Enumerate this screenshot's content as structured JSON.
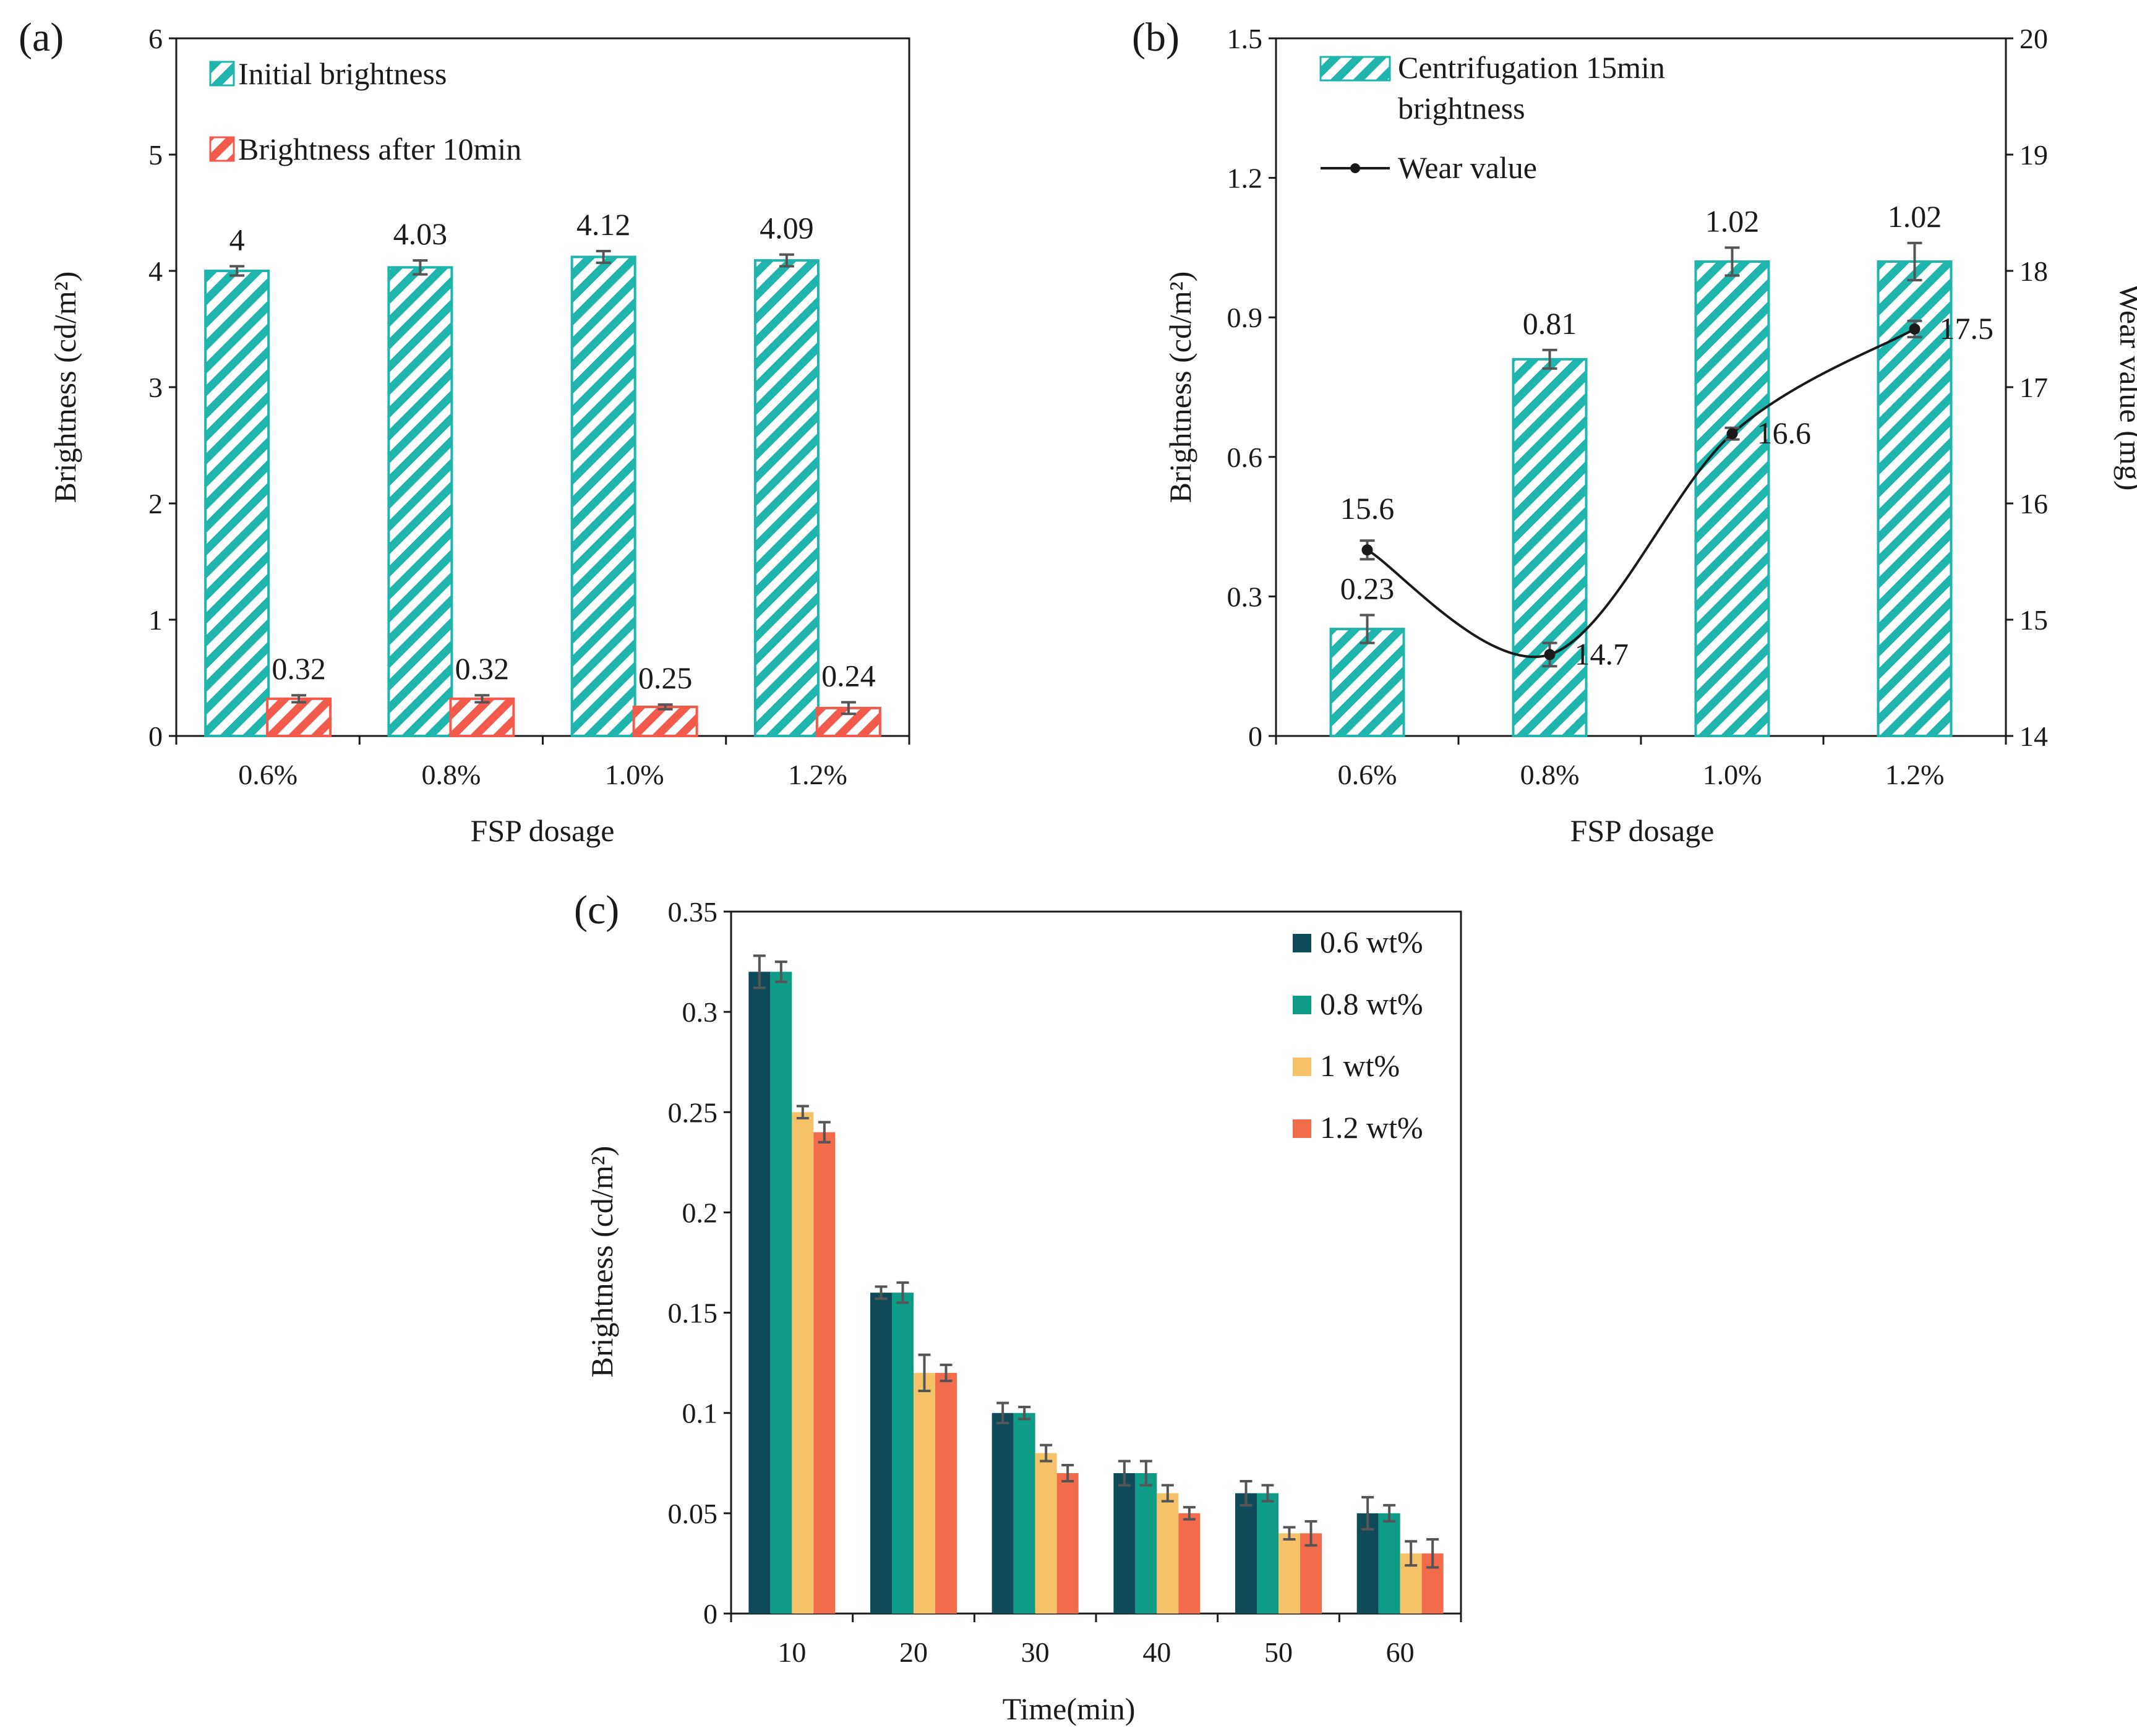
{
  "colors": {
    "teal": "#1fb5ac",
    "red": "#f25a4c",
    "black": "#1a1a1a",
    "error": "#555555",
    "dark_teal": "#0f4a58",
    "green": "#0e9c86",
    "yellow": "#f5c26a",
    "orange": "#f26b4a"
  },
  "chart_data": [
    {
      "id": "a",
      "panel_label": "(a)",
      "type": "bar",
      "xlabel": "FSP dosage",
      "ylabel": "Brightness (cd/m²)",
      "ylim": [
        0,
        6
      ],
      "yticks": [
        "0",
        "1",
        "2",
        "3",
        "4",
        "5",
        "6"
      ],
      "categories": [
        "0.6%",
        "0.8%",
        "1.0%",
        "1.2%"
      ],
      "legend_position": "top-left",
      "series": [
        {
          "name": "Initial brightness",
          "pattern": "hatch",
          "color_key": "teal",
          "values": [
            4,
            4.03,
            4.12,
            4.09
          ],
          "errors": [
            0.04,
            0.06,
            0.05,
            0.05
          ],
          "labels": [
            "4",
            "4.03",
            "4.12",
            "4.09"
          ]
        },
        {
          "name": "Brightness after 10min",
          "pattern": "hatch",
          "color_key": "red",
          "values": [
            0.32,
            0.32,
            0.25,
            0.24
          ],
          "errors": [
            0.03,
            0.03,
            0.02,
            0.05
          ],
          "labels": [
            "0.32",
            "0.32",
            "0.25",
            "0.24"
          ]
        }
      ]
    },
    {
      "id": "b",
      "panel_label": "(b)",
      "type": "bar+line",
      "xlabel": "FSP dosage",
      "ylabel": "Brightness (cd/m²)",
      "ylabel_right": "Wear value (mg)",
      "ylim": [
        0,
        1.5
      ],
      "yticks": [
        "0",
        "0.3",
        "0.6",
        "0.9",
        "1.2",
        "1.5"
      ],
      "ylim_right": [
        14,
        20
      ],
      "yticks_right": [
        "14",
        "15",
        "16",
        "17",
        "18",
        "19",
        "20"
      ],
      "categories": [
        "0.6%",
        "0.8%",
        "1.0%",
        "1.2%"
      ],
      "legend_position": "top-left",
      "bar_series": {
        "name_line1": "Centrifugation 15min",
        "name_line2": "brightness",
        "pattern": "hatch",
        "color_key": "teal",
        "values": [
          0.23,
          0.81,
          1.02,
          1.02
        ],
        "errors": [
          0.03,
          0.02,
          0.03,
          0.04
        ],
        "labels": [
          "0.23",
          "0.81",
          "1.02",
          "1.02"
        ]
      },
      "line_series": {
        "name": "Wear value",
        "color_key": "black",
        "values": [
          15.6,
          14.7,
          16.6,
          17.5
        ],
        "errors": [
          0.08,
          0.1,
          0.05,
          0.07
        ],
        "labels": [
          "15.6",
          "14.7",
          "16.6",
          "17.5"
        ]
      }
    },
    {
      "id": "c",
      "panel_label": "(c)",
      "type": "bar",
      "xlabel": "Time(min)",
      "ylabel": "Brightness (cd/m²)",
      "ylim": [
        0,
        0.35
      ],
      "yticks": [
        "0",
        "0.05",
        "0.1",
        "0.15",
        "0.2",
        "0.25",
        "0.3",
        "0.35"
      ],
      "categories": [
        "10",
        "20",
        "30",
        "40",
        "50",
        "60"
      ],
      "legend_position": "top-right",
      "series": [
        {
          "name": "0.6 wt%",
          "color_key": "dark_teal",
          "values": [
            0.32,
            0.16,
            0.1,
            0.07,
            0.06,
            0.05
          ],
          "errors": [
            0.008,
            0.003,
            0.005,
            0.006,
            0.006,
            0.008
          ]
        },
        {
          "name": "0.8 wt%",
          "color_key": "green",
          "values": [
            0.32,
            0.16,
            0.1,
            0.07,
            0.06,
            0.05
          ],
          "errors": [
            0.005,
            0.005,
            0.003,
            0.006,
            0.004,
            0.004
          ]
        },
        {
          "name": "1 wt%",
          "color_key": "yellow",
          "values": [
            0.25,
            0.12,
            0.08,
            0.06,
            0.04,
            0.03
          ],
          "errors": [
            0.003,
            0.009,
            0.004,
            0.004,
            0.003,
            0.006
          ]
        },
        {
          "name": "1.2 wt%",
          "color_key": "orange",
          "values": [
            0.24,
            0.12,
            0.07,
            0.05,
            0.04,
            0.03
          ],
          "errors": [
            0.005,
            0.004,
            0.004,
            0.003,
            0.006,
            0.007
          ]
        }
      ]
    }
  ]
}
